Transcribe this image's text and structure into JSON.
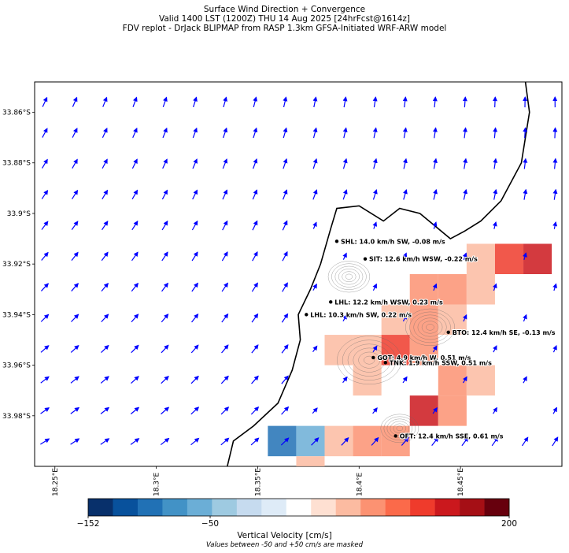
{
  "header": {
    "title": "Surface Wind Direction + Convergence",
    "valid": "Valid 1400 LST (1200Z) THU 14 Aug 2025 [24hrFcst@1614z]",
    "source": "FDV replot - DrJack BLIPMAP from RASP 1.3km GFSA-Initiated WRF-ARW model"
  },
  "chart_data": {
    "type": "heatmap",
    "title": "Surface Wind Direction + Convergence",
    "x_axis": {
      "range": [
        18.24,
        18.5
      ],
      "ticks": [
        "18.25°E",
        "18.3°E",
        "18.35°E",
        "18.4°E",
        "18.45°E"
      ],
      "tick_values": [
        18.25,
        18.3,
        18.35,
        18.4,
        18.45
      ]
    },
    "y_axis": {
      "range": [
        -34.0,
        -33.848
      ],
      "ticks": [
        "33.86°S",
        "33.88°S",
        "33.9°S",
        "33.92°S",
        "33.94°S",
        "33.96°S",
        "33.98°S"
      ],
      "tick_values": [
        -33.86,
        -33.88,
        -33.9,
        -33.92,
        -33.94,
        -33.96,
        -33.98
      ]
    },
    "grid": false,
    "wind_arrow_color": "#0000ff",
    "stations": [
      {
        "lon": 18.389,
        "lat": -33.911,
        "label": "SHL: 14.0 km/h SW, -0.08 m/s"
      },
      {
        "lon": 18.403,
        "lat": -33.918,
        "label": "SIT: 12.6 km/h WSW, -0.22 m/s"
      },
      {
        "lon": 18.386,
        "lat": -33.935,
        "label": "LHL: 12.2 km/h WSW, 0.23 m/s"
      },
      {
        "lon": 18.374,
        "lat": -33.94,
        "label": "LHL: 10.3 km/h SW, 0.22 m/s"
      },
      {
        "lon": 18.444,
        "lat": -33.947,
        "label": "BTO: 12.4 km/h SE, -0.13 m/s"
      },
      {
        "lon": 18.407,
        "lat": -33.957,
        "label": "GOT: 4.9 km/h W, 0.51 m/s"
      },
      {
        "lon": 18.413,
        "lat": -33.959,
        "label": "TNK: 1.9 km/h SSW, 0.51 m/s"
      },
      {
        "lon": 18.418,
        "lat": -33.988,
        "label": "OFT: 12.4 km/h SSE, 0.61 m/s"
      }
    ],
    "velocity_cells": [
      {
        "lon": 18.46,
        "lat": -33.918,
        "value": 60
      },
      {
        "lon": 18.474,
        "lat": -33.918,
        "value": 120
      },
      {
        "lon": 18.488,
        "lat": -33.918,
        "value": 150
      },
      {
        "lon": 18.432,
        "lat": -33.93,
        "value": 80
      },
      {
        "lon": 18.446,
        "lat": -33.93,
        "value": 80
      },
      {
        "lon": 18.46,
        "lat": -33.93,
        "value": 60
      },
      {
        "lon": 18.418,
        "lat": -33.942,
        "value": 60
      },
      {
        "lon": 18.432,
        "lat": -33.942,
        "value": 80
      },
      {
        "lon": 18.446,
        "lat": -33.942,
        "value": 60
      },
      {
        "lon": 18.39,
        "lat": -33.954,
        "value": 60
      },
      {
        "lon": 18.404,
        "lat": -33.954,
        "value": 60
      },
      {
        "lon": 18.418,
        "lat": -33.954,
        "value": 120
      },
      {
        "lon": 18.432,
        "lat": -33.954,
        "value": 80
      },
      {
        "lon": 18.446,
        "lat": -33.966,
        "value": 80
      },
      {
        "lon": 18.46,
        "lat": -33.966,
        "value": 60
      },
      {
        "lon": 18.404,
        "lat": -33.966,
        "value": 60
      },
      {
        "lon": 18.432,
        "lat": -33.978,
        "value": 150
      },
      {
        "lon": 18.446,
        "lat": -33.978,
        "value": 80
      },
      {
        "lon": 18.362,
        "lat": -33.99,
        "value": -90
      },
      {
        "lon": 18.376,
        "lat": -33.99,
        "value": -60
      },
      {
        "lon": 18.39,
        "lat": -33.99,
        "value": 60
      },
      {
        "lon": 18.404,
        "lat": -33.99,
        "value": 80
      },
      {
        "lon": 18.418,
        "lat": -33.99,
        "value": 80
      },
      {
        "lon": 18.376,
        "lat": -34.002,
        "value": 60
      }
    ],
    "colorbar": {
      "label": "Vertical Velocity [cm/s]",
      "note": "Values between -50 and +50 cm/s are masked",
      "ticks": [
        "−152",
        "−50",
        "200"
      ],
      "colors": [
        "#08306b",
        "#08519c",
        "#2171b5",
        "#4292c6",
        "#6baed6",
        "#9ecae1",
        "#c6dbef",
        "#deebf7",
        "#ffffff",
        "#fee0d2",
        "#fcbba1",
        "#fc9272",
        "#fb6a4a",
        "#ef3b2c",
        "#cb181d",
        "#a50f15",
        "#67000d"
      ]
    }
  }
}
